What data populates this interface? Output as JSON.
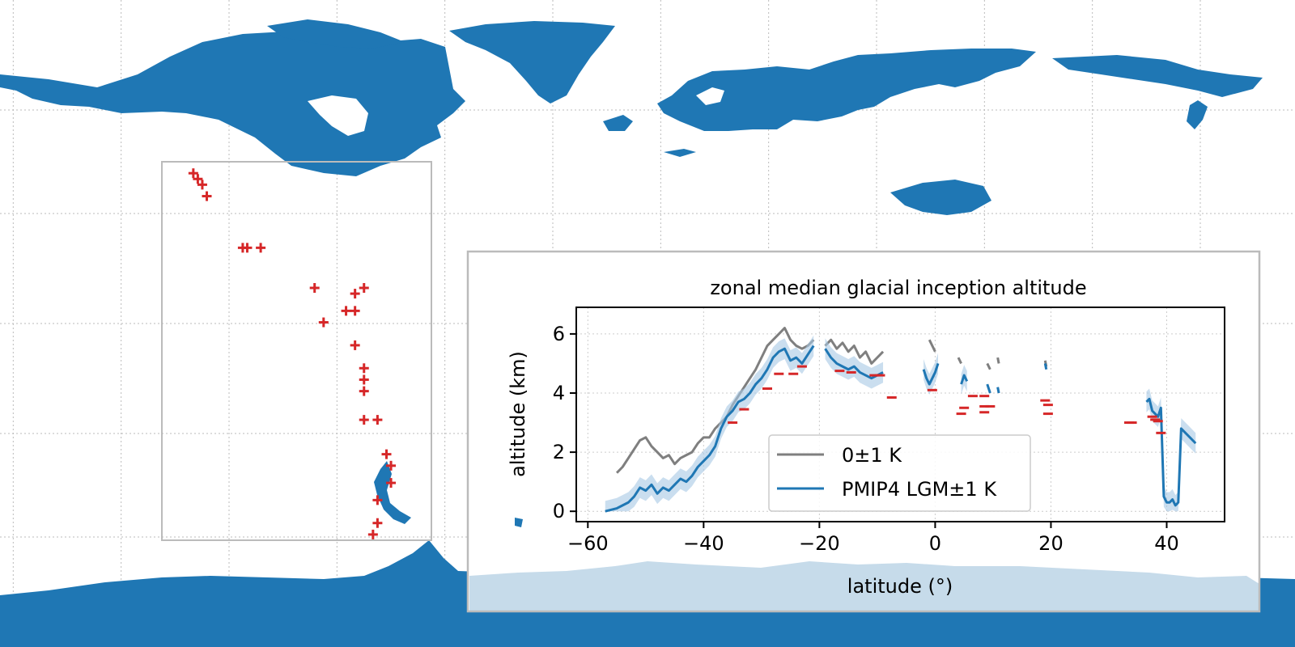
{
  "colors": {
    "land": "#1f77b4",
    "land_inset": "#c6dbea",
    "site_marker": "#d62728",
    "series_0k": "#7f7f7f",
    "series_lgm": "#1f77b4",
    "band_lgm": "#a6c8e4",
    "frame": "#bbbbbb"
  },
  "map": {
    "type": "map",
    "projection": "equirectangular",
    "grid": "dotted graticule",
    "region_box": "South America (Andes)",
    "site_markers": [
      {
        "lon": -81,
        "lat": 8
      },
      {
        "lon": -80,
        "lat": 7
      },
      {
        "lon": -79,
        "lat": 6
      },
      {
        "lon": -78,
        "lat": 4
      },
      {
        "lon": -70,
        "lat": -5
      },
      {
        "lon": -69,
        "lat": -5
      },
      {
        "lon": -66,
        "lat": -5
      },
      {
        "lon": -54,
        "lat": -12
      },
      {
        "lon": -52,
        "lat": -18
      },
      {
        "lon": -47,
        "lat": -16
      },
      {
        "lon": -45,
        "lat": -13
      },
      {
        "lon": -45,
        "lat": -16
      },
      {
        "lon": -43,
        "lat": -12
      },
      {
        "lon": -45,
        "lat": -22
      },
      {
        "lon": -43,
        "lat": -26
      },
      {
        "lon": -43,
        "lat": -28
      },
      {
        "lon": -43,
        "lat": -30
      },
      {
        "lon": -43,
        "lat": -35
      },
      {
        "lon": -40,
        "lat": -35
      },
      {
        "lon": -38,
        "lat": -41
      },
      {
        "lon": -37,
        "lat": -43
      },
      {
        "lon": -37,
        "lat": -46
      },
      {
        "lon": -40,
        "lat": -49
      },
      {
        "lon": -40,
        "lat": -53
      },
      {
        "lon": -41,
        "lat": -55
      }
    ]
  },
  "chart_data": {
    "type": "line",
    "title": "zonal median glacial inception altitude",
    "xlabel": "latitude (°)",
    "ylabel": "altitude (km)",
    "xlim": [
      -62,
      50
    ],
    "ylim": [
      -0.35,
      6.9
    ],
    "xticks": [
      -60,
      -40,
      -20,
      0,
      20,
      40
    ],
    "xtick_labels": [
      "−60",
      "−40",
      "−20",
      "0",
      "20",
      "40"
    ],
    "yticks": [
      0,
      2,
      4,
      6
    ],
    "ytick_labels": [
      "0",
      "2",
      "4",
      "6"
    ],
    "legend": {
      "position": "lower-center",
      "entries": [
        {
          "label": "0±1 K",
          "series": 0
        },
        {
          "label": "PMIP4 LGM±1 K",
          "series": 1
        }
      ]
    },
    "series": [
      {
        "name": "0±1 K",
        "segments": [
          [
            [
              -55,
              1.3
            ],
            [
              -54,
              1.5
            ],
            [
              -53,
              1.8
            ],
            [
              -52,
              2.1
            ],
            [
              -51,
              2.4
            ],
            [
              -50,
              2.5
            ],
            [
              -49,
              2.2
            ],
            [
              -48,
              2.0
            ],
            [
              -47,
              1.8
            ],
            [
              -46,
              1.9
            ],
            [
              -45,
              1.6
            ],
            [
              -44,
              1.8
            ],
            [
              -43,
              1.9
            ],
            [
              -42,
              2.0
            ],
            [
              -41,
              2.3
            ],
            [
              -40,
              2.5
            ],
            [
              -39,
              2.5
            ],
            [
              -38,
              2.8
            ],
            [
              -37,
              3.0
            ],
            [
              -36,
              3.2
            ],
            [
              -35,
              3.6
            ],
            [
              -34,
              3.9
            ],
            [
              -33,
              4.2
            ],
            [
              -32,
              4.5
            ],
            [
              -31,
              4.8
            ],
            [
              -30,
              5.2
            ],
            [
              -29,
              5.6
            ],
            [
              -28,
              5.8
            ],
            [
              -27,
              6.0
            ],
            [
              -26,
              6.2
            ],
            [
              -25,
              5.8
            ],
            [
              -24,
              5.6
            ],
            [
              -23,
              5.5
            ],
            [
              -22,
              5.6
            ],
            [
              -21,
              5.8
            ]
          ],
          [
            [
              -19,
              5.6
            ],
            [
              -18,
              5.8
            ],
            [
              -17,
              5.5
            ],
            [
              -16,
              5.7
            ],
            [
              -15,
              5.4
            ],
            [
              -14,
              5.6
            ],
            [
              -13,
              5.2
            ],
            [
              -12,
              5.4
            ],
            [
              -11,
              5.0
            ],
            [
              -10,
              5.2
            ],
            [
              -9,
              5.4
            ]
          ],
          [
            [
              -1,
              5.8
            ],
            [
              -0.5,
              5.6
            ],
            [
              0,
              5.4
            ]
          ],
          [
            [
              4,
              5.2
            ],
            [
              4.5,
              5.0
            ]
          ],
          [
            [
              9,
              5.0
            ],
            [
              9.5,
              4.8
            ]
          ],
          [
            [
              10.8,
              5.2
            ],
            [
              11,
              5.0
            ]
          ],
          [
            [
              19,
              5.1
            ],
            [
              19.2,
              4.9
            ]
          ]
        ]
      },
      {
        "name": "PMIP4 LGM±1 K",
        "segments": [
          [
            [
              -57,
              0.0
            ],
            [
              -55,
              0.1
            ],
            [
              -54,
              0.2
            ],
            [
              -53,
              0.3
            ],
            [
              -52,
              0.5
            ],
            [
              -51,
              0.8
            ],
            [
              -50,
              0.7
            ],
            [
              -49,
              0.9
            ],
            [
              -48,
              0.6
            ],
            [
              -47,
              0.8
            ],
            [
              -46,
              0.7
            ],
            [
              -45,
              0.9
            ],
            [
              -44,
              1.1
            ],
            [
              -43,
              1.0
            ],
            [
              -42,
              1.2
            ],
            [
              -41,
              1.5
            ],
            [
              -40,
              1.7
            ],
            [
              -39,
              1.9
            ],
            [
              -38,
              2.2
            ],
            [
              -37,
              2.8
            ],
            [
              -36,
              3.2
            ],
            [
              -35,
              3.4
            ],
            [
              -34,
              3.7
            ],
            [
              -33,
              3.8
            ],
            [
              -32,
              4.0
            ],
            [
              -31,
              4.3
            ],
            [
              -30,
              4.5
            ],
            [
              -29,
              4.8
            ],
            [
              -28,
              5.2
            ],
            [
              -27,
              5.4
            ],
            [
              -26,
              5.5
            ],
            [
              -25,
              5.1
            ],
            [
              -24,
              5.2
            ],
            [
              -23,
              5.0
            ],
            [
              -22,
              5.3
            ],
            [
              -21,
              5.6
            ]
          ],
          [
            [
              -19,
              5.5
            ],
            [
              -18,
              5.2
            ],
            [
              -17,
              5.0
            ],
            [
              -16,
              4.9
            ],
            [
              -15,
              4.8
            ],
            [
              -14,
              4.9
            ],
            [
              -13,
              4.7
            ],
            [
              -12,
              4.6
            ],
            [
              -11,
              4.5
            ],
            [
              -10,
              4.6
            ],
            [
              -9,
              4.7
            ]
          ],
          [
            [
              -2,
              4.8
            ],
            [
              -1.5,
              4.5
            ],
            [
              -1,
              4.3
            ],
            [
              0,
              4.7
            ],
            [
              0.5,
              5.0
            ]
          ],
          [
            [
              4.5,
              4.3
            ],
            [
              5,
              4.6
            ],
            [
              5.5,
              4.4
            ]
          ],
          [
            [
              9,
              4.3
            ],
            [
              9.5,
              4.0
            ]
          ],
          [
            [
              10.8,
              4.2
            ],
            [
              11,
              4.0
            ]
          ],
          [
            [
              19,
              5.0
            ],
            [
              19.2,
              4.8
            ]
          ],
          [
            [
              36.5,
              3.7
            ],
            [
              37,
              3.8
            ],
            [
              37.5,
              3.4
            ],
            [
              38,
              3.3
            ],
            [
              38.5,
              3.2
            ],
            [
              39,
              3.5
            ],
            [
              39.5,
              0.5
            ],
            [
              40,
              0.3
            ],
            [
              40.5,
              0.3
            ],
            [
              41,
              0.4
            ],
            [
              41.5,
              0.2
            ],
            [
              42,
              0.3
            ],
            [
              42.5,
              2.8
            ],
            [
              43,
              2.7
            ],
            [
              44,
              2.5
            ],
            [
              45,
              2.3
            ]
          ]
        ]
      }
    ],
    "site_markers": [
      {
        "x": -35,
        "y": 3.0
      },
      {
        "x": -33,
        "y": 3.45
      },
      {
        "x": -29,
        "y": 4.15
      },
      {
        "x": -27,
        "y": 4.65
      },
      {
        "x": -24.5,
        "y": 4.65
      },
      {
        "x": -23,
        "y": 4.9
      },
      {
        "x": -16.5,
        "y": 4.75
      },
      {
        "x": -14.5,
        "y": 4.7
      },
      {
        "x": -10.5,
        "y": 4.6
      },
      {
        "x": -9.5,
        "y": 4.6
      },
      {
        "x": -7.5,
        "y": 3.85
      },
      {
        "x": -0.5,
        "y": 4.1
      },
      {
        "x": 4.5,
        "y": 3.3
      },
      {
        "x": 5,
        "y": 3.5
      },
      {
        "x": 6.5,
        "y": 3.9
      },
      {
        "x": 8.5,
        "y": 3.55
      },
      {
        "x": 8.5,
        "y": 3.35
      },
      {
        "x": 8.5,
        "y": 3.9
      },
      {
        "x": 9.5,
        "y": 3.55
      },
      {
        "x": 19,
        "y": 3.75
      },
      {
        "x": 19.5,
        "y": 3.6
      },
      {
        "x": 19.5,
        "y": 3.3
      },
      {
        "x": 33.5,
        "y": 3.0
      },
      {
        "x": 34,
        "y": 3.0
      },
      {
        "x": 37.5,
        "y": 3.2
      },
      {
        "x": 38,
        "y": 3.1
      },
      {
        "x": 38.5,
        "y": 3.05
      },
      {
        "x": 39,
        "y": 2.65
      }
    ],
    "grid": true
  }
}
